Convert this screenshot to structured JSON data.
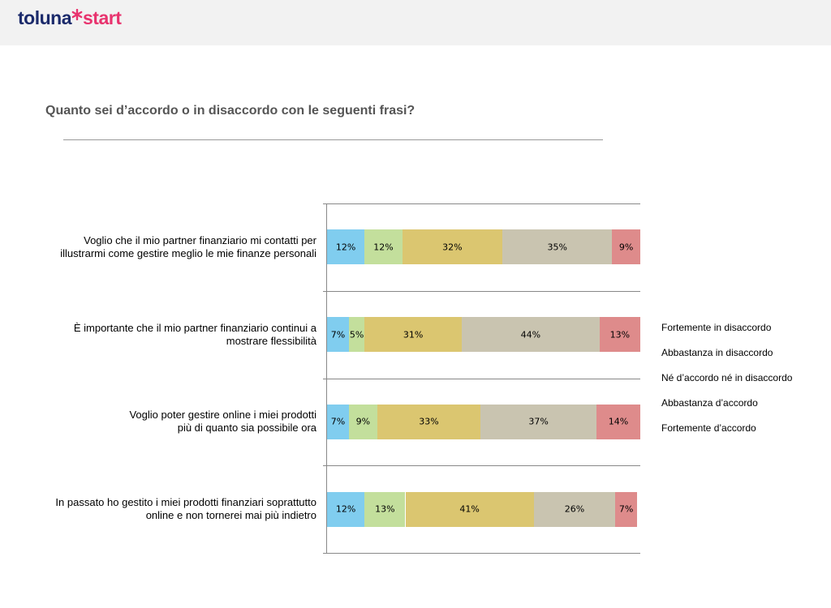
{
  "header": {
    "brand": "toluna",
    "product": "start"
  },
  "chart_data": {
    "type": "stacked-bar",
    "title": "Quanto sei d’accordo o in disaccordo con le seguenti frasi?",
    "categories": [
      [
        "Voglio che il mio partner finanziario mi contatti per",
        "illustrarmi come gestire meglio le mie finanze personali"
      ],
      [
        "È importante che il mio partner finanziario continui a",
        "mostrare flessibilità"
      ],
      [
        "Voglio poter gestire online i miei prodotti",
        "più di quanto sia possibile ora"
      ],
      [
        "In passato ho gestito i miei prodotti finanziari soprattutto",
        "online e non tornerei mai più indietro"
      ]
    ],
    "xlim": [
      0,
      100
    ],
    "series": [
      {
        "name": "Fortemente in disaccordo",
        "color": "#80cdef",
        "values": [
          12,
          7,
          7,
          12
        ],
        "value_labels": [
          "12%",
          "7%",
          "7%",
          "12%"
        ]
      },
      {
        "name": "Abbastanza in disaccordo",
        "color": "#c3df9c",
        "values": [
          12,
          5,
          9,
          13
        ],
        "value_labels": [
          "12%",
          "5%",
          "9%",
          "13%"
        ]
      },
      {
        "name": "Né d’accordo né in disaccordo",
        "color": "#dbc670",
        "values": [
          32,
          31,
          33,
          41
        ],
        "value_labels": [
          "32%",
          "31%",
          "33%",
          "41%"
        ]
      },
      {
        "name": "Abbastanza d’accordo",
        "color": "#c9c4b0",
        "values": [
          35,
          44,
          37,
          26
        ],
        "value_labels": [
          "35%",
          "44%",
          "37%",
          "26%"
        ]
      },
      {
        "name": "Fortemente d’accordo",
        "color": "#de8b8b",
        "values": [
          9,
          13,
          14,
          7
        ],
        "value_labels": [
          "9%",
          "13%",
          "14%",
          "7%"
        ]
      }
    ]
  }
}
